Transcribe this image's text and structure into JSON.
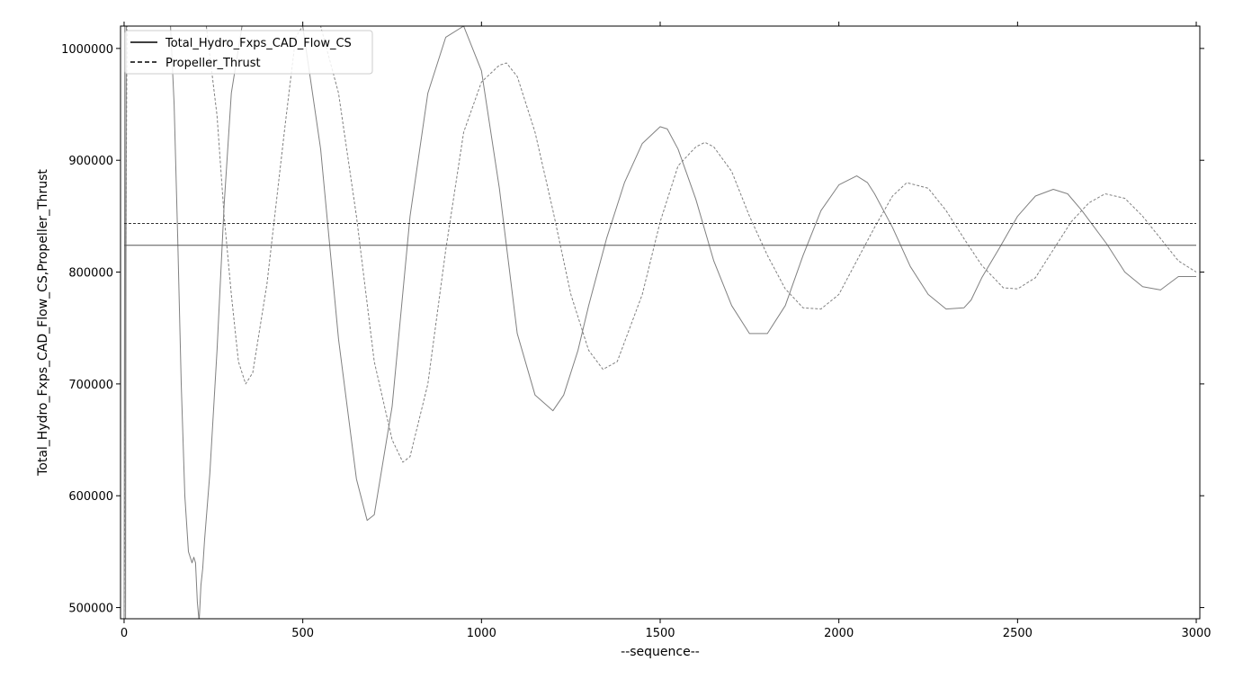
{
  "chart_data": {
    "type": "line",
    "title": "",
    "xlabel": "--sequence--",
    "ylabel": "Total_Hydro_Fxps_CAD_Flow_CS,Propeller_Thrust",
    "xlim": [
      -10,
      3010
    ],
    "ylim": [
      490000,
      1020000
    ],
    "x_ticks": [
      0,
      500,
      1000,
      1500,
      2000,
      2500,
      3000
    ],
    "x_tick_labels": [
      "0",
      "500",
      "1000",
      "1500",
      "2000",
      "2500",
      "3000"
    ],
    "y_ticks": [
      500000,
      600000,
      700000,
      800000,
      900000,
      1000000
    ],
    "y_tick_labels": [
      "500000",
      "600000",
      "700000",
      "800000",
      "900000",
      "1000000"
    ],
    "grid": false,
    "legend_position": "top-left",
    "series": [
      {
        "name": "Total_Hydro_Fxps_CAD_Flow_CS",
        "style": "solid",
        "color": "#808080",
        "x": [
          0,
          2,
          4,
          6,
          8,
          20,
          60,
          100,
          130,
          140,
          150,
          160,
          170,
          180,
          190,
          195,
          200,
          205,
          210,
          215,
          220,
          225,
          240,
          260,
          280,
          300,
          330,
          360,
          390,
          420,
          450,
          480,
          500,
          550,
          600,
          650,
          680,
          700,
          750,
          800,
          850,
          900,
          950,
          1000,
          1050,
          1100,
          1150,
          1200,
          1230,
          1270,
          1300,
          1350,
          1400,
          1450,
          1500,
          1520,
          1550,
          1600,
          1650,
          1700,
          1750,
          1800,
          1850,
          1900,
          1950,
          2000,
          2050,
          2080,
          2100,
          2150,
          2200,
          2250,
          2300,
          2350,
          2370,
          2400,
          2450,
          2500,
          2550,
          2600,
          2640,
          2680,
          2750,
          2800,
          2850,
          2900,
          2950,
          3000
        ],
        "y": [
          480000,
          1020000,
          480000,
          1020000,
          1020000,
          1020000,
          1020000,
          1020000,
          1020000,
          950000,
          830000,
          700000,
          600000,
          550000,
          540000,
          545000,
          540000,
          505000,
          487000,
          520000,
          535000,
          560000,
          620000,
          730000,
          860000,
          960000,
          1020000,
          1020000,
          1020000,
          1020000,
          1020000,
          1020000,
          1020000,
          910000,
          740000,
          615000,
          578000,
          583000,
          680000,
          850000,
          960000,
          1010000,
          1020000,
          980000,
          875000,
          745000,
          690000,
          676000,
          690000,
          730000,
          770000,
          830000,
          880000,
          915000,
          930000,
          928000,
          910000,
          865000,
          810000,
          770000,
          745000,
          745000,
          770000,
          815000,
          855000,
          878000,
          886000,
          880000,
          870000,
          840000,
          805000,
          780000,
          767000,
          768000,
          775000,
          795000,
          822000,
          850000,
          868000,
          874000,
          870000,
          855000,
          825000,
          800000,
          787000,
          784000,
          796000,
          796000
        ]
      },
      {
        "name": "Propeller_Thrust",
        "style": "dashed",
        "color": "#808080",
        "x": [
          0,
          8,
          20,
          200,
          230,
          260,
          280,
          300,
          320,
          340,
          360,
          400,
          450,
          480,
          500,
          550,
          600,
          650,
          700,
          750,
          780,
          800,
          850,
          900,
          950,
          1000,
          1050,
          1070,
          1100,
          1150,
          1200,
          1250,
          1300,
          1340,
          1380,
          1450,
          1500,
          1550,
          1600,
          1625,
          1650,
          1700,
          1750,
          1800,
          1850,
          1900,
          1950,
          2000,
          2050,
          2100,
          2150,
          2190,
          2250,
          2300,
          2350,
          2400,
          2460,
          2500,
          2550,
          2600,
          2650,
          2700,
          2745,
          2800,
          2850,
          2900,
          2950,
          3000
        ],
        "y": [
          480000,
          1020000,
          1020000,
          1020000,
          1020000,
          940000,
          850000,
          780000,
          720000,
          700000,
          710000,
          790000,
          930000,
          1010000,
          1020000,
          1020000,
          960000,
          850000,
          720000,
          650000,
          630000,
          635000,
          700000,
          820000,
          925000,
          970000,
          985000,
          987000,
          975000,
          925000,
          855000,
          780000,
          730000,
          713000,
          720000,
          780000,
          845000,
          895000,
          912000,
          916000,
          912000,
          890000,
          850000,
          815000,
          785000,
          768000,
          767000,
          780000,
          810000,
          840000,
          868000,
          880000,
          875000,
          855000,
          830000,
          806000,
          786000,
          785000,
          795000,
          820000,
          845000,
          862000,
          870000,
          866000,
          850000,
          830000,
          810000,
          800000
        ]
      },
      {
        "name": "",
        "style": "solid",
        "color": "#555555",
        "x": [
          0,
          3000
        ],
        "y": [
          824000,
          824000
        ]
      },
      {
        "name": "",
        "style": "dashed",
        "color": "#333333",
        "x": [
          0,
          3000
        ],
        "y": [
          843500,
          843500
        ]
      }
    ]
  }
}
